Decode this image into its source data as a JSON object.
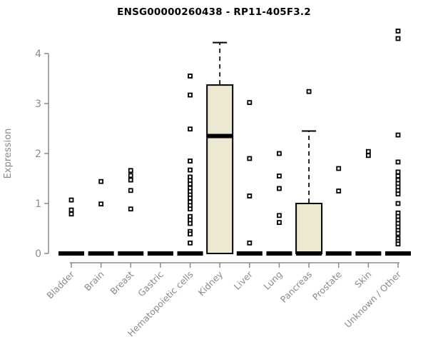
{
  "chart_data": {
    "type": "boxplot",
    "title": "ENSG00000260438 - RP11-405F3.2",
    "ylabel": "Expression",
    "xlabel": "",
    "ylim": [
      0,
      4
    ],
    "yticks": [
      0,
      1,
      2,
      3,
      4
    ],
    "grid": false,
    "legend": null,
    "colors": {
      "box_fill": "#EDE8D1",
      "box_border": "#000000",
      "median": "#000000",
      "whisker": "#000000",
      "outlier_stroke": "#000000",
      "outlier_fill": "#FFFFFF",
      "axis": "#8A8A8A",
      "label": "#8A8A8A",
      "title": "#000000",
      "background": "#FFFFFF"
    },
    "categories": [
      "Bladder",
      "Brain",
      "Breast",
      "Gastric",
      "Hematopoietic cells",
      "Kidney",
      "Liver",
      "Lung",
      "Pancreas",
      "Prostate",
      "Skin",
      "Unknown / Other"
    ],
    "series": [
      {
        "category": "Bladder",
        "q1": 0,
        "median": 0,
        "q3": 0,
        "whisker_low": 0,
        "whisker_high": 0,
        "outliers": [
          1.07,
          0.87,
          0.79
        ]
      },
      {
        "category": "Brain",
        "q1": 0,
        "median": 0,
        "q3": 0,
        "whisker_low": 0,
        "whisker_high": 0,
        "outliers": [
          1.44,
          0.99
        ]
      },
      {
        "category": "Breast",
        "q1": 0,
        "median": 0,
        "q3": 0,
        "whisker_low": 0,
        "whisker_high": 0,
        "outliers": [
          1.66,
          1.56,
          1.47,
          1.26,
          0.89
        ]
      },
      {
        "category": "Gastric",
        "q1": 0,
        "median": 0,
        "q3": 0,
        "whisker_low": 0,
        "whisker_high": 0,
        "outliers": []
      },
      {
        "category": "Hematopoietic cells",
        "q1": 0,
        "median": 0,
        "q3": 0,
        "whisker_low": 0,
        "whisker_high": 0,
        "outliers": [
          3.55,
          3.17,
          2.49,
          1.85,
          1.67,
          1.53,
          1.46,
          1.39,
          1.31,
          1.24,
          1.17,
          1.11,
          1.03,
          0.96,
          0.89,
          0.74,
          0.67,
          0.6,
          0.44,
          0.39,
          0.21
        ]
      },
      {
        "category": "Kidney",
        "q1": 0,
        "median": 2.35,
        "q3": 3.37,
        "whisker_low": 0,
        "whisker_high": 4.22,
        "outliers": []
      },
      {
        "category": "Liver",
        "q1": 0,
        "median": 0,
        "q3": 0,
        "whisker_low": 0,
        "whisker_high": 0,
        "outliers": [
          3.02,
          1.9,
          1.15,
          0.21
        ]
      },
      {
        "category": "Lung",
        "q1": 0,
        "median": 0,
        "q3": 0,
        "whisker_low": 0,
        "whisker_high": 0,
        "outliers": [
          2.0,
          1.55,
          1.3,
          0.76,
          0.62
        ]
      },
      {
        "category": "Pancreas",
        "q1": 0,
        "median": 0,
        "q3": 1.0,
        "whisker_low": 0,
        "whisker_high": 2.45,
        "outliers": [
          3.24
        ]
      },
      {
        "category": "Prostate",
        "q1": 0,
        "median": 0,
        "q3": 0,
        "whisker_low": 0,
        "whisker_high": 0,
        "outliers": [
          1.7,
          1.25
        ]
      },
      {
        "category": "Skin",
        "q1": 0,
        "median": 0,
        "q3": 0,
        "whisker_low": 0,
        "whisker_high": 0,
        "outliers": [
          2.04,
          1.96
        ]
      },
      {
        "category": "Unknown / Other",
        "q1": 0,
        "median": 0,
        "q3": 0,
        "whisker_low": 0,
        "whisker_high": 0,
        "outliers": [
          4.45,
          4.3,
          2.37,
          1.83,
          1.63,
          1.55,
          1.47,
          1.4,
          1.33,
          1.26,
          1.19,
          1.0,
          0.81,
          0.74,
          0.67,
          0.6,
          0.53,
          0.46,
          0.4,
          0.3,
          0.24,
          0.19
        ]
      }
    ]
  }
}
